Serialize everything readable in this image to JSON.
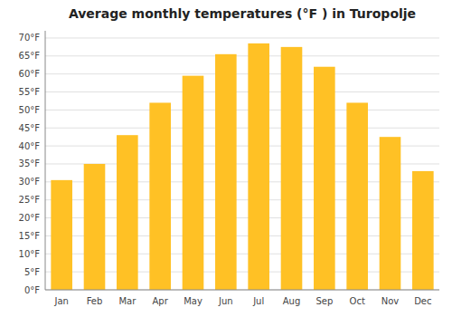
{
  "chart_data": {
    "type": "bar",
    "title": "Average monthly temperatures (°F ) in Turopolje",
    "categories": [
      "Jan",
      "Feb",
      "Mar",
      "Apr",
      "May",
      "Jun",
      "Jul",
      "Aug",
      "Sep",
      "Oct",
      "Nov",
      "Dec"
    ],
    "values": [
      30.5,
      35.0,
      43.0,
      52.0,
      59.5,
      65.5,
      68.5,
      67.5,
      62.0,
      52.0,
      42.5,
      33.0
    ],
    "color": "#FFC125",
    "ylim": [
      0,
      72
    ],
    "yticks": [
      {
        "value": 0,
        "label": "0°F"
      },
      {
        "value": 5,
        "label": "5°F"
      },
      {
        "value": 10,
        "label": "10°F"
      },
      {
        "value": 15,
        "label": "15°F"
      },
      {
        "value": 20,
        "label": "20°F"
      },
      {
        "value": 25,
        "label": "25°F"
      },
      {
        "value": 30,
        "label": "30°F"
      },
      {
        "value": 35,
        "label": "35°F"
      },
      {
        "value": 40,
        "label": "40°F"
      },
      {
        "value": 45,
        "label": "45°F"
      },
      {
        "value": 50,
        "label": "50°F"
      },
      {
        "value": 55,
        "label": "55°F"
      },
      {
        "value": 60,
        "label": "60°F"
      },
      {
        "value": 65,
        "label": "65°F"
      },
      {
        "value": 70,
        "label": "70°F"
      }
    ],
    "grid": true
  }
}
